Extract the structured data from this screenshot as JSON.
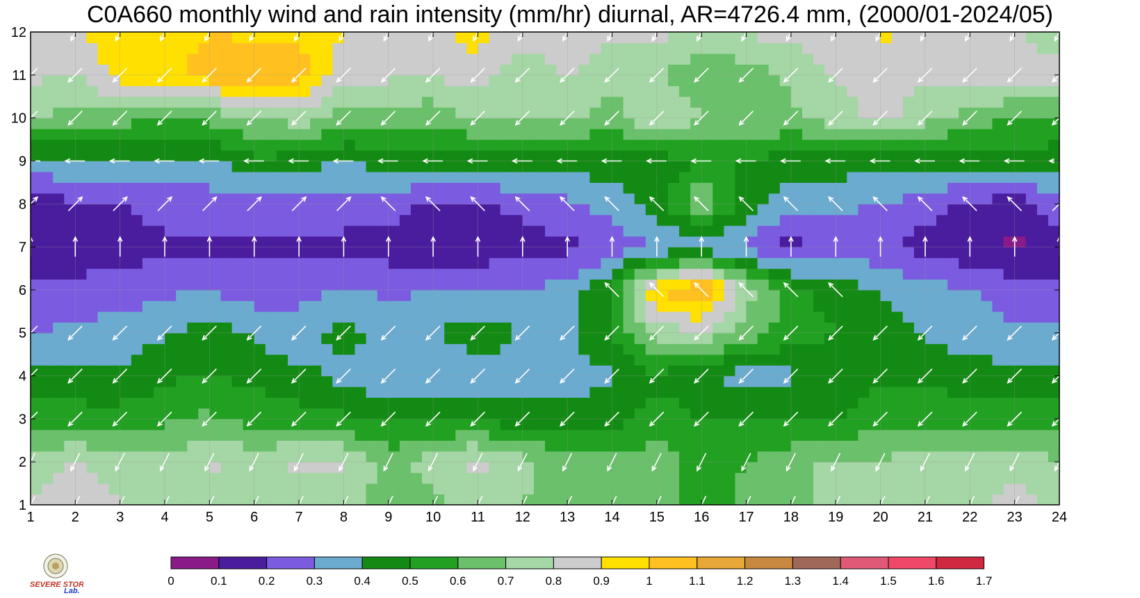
{
  "chart_data": {
    "type": "heatmap",
    "title": "C0A660 monthly wind and rain intensity (mm/hr) diurnal, AR=4726.4 mm, (2000/01-2024/05)",
    "xlabel": "",
    "ylabel": "",
    "xlim": [
      1,
      24
    ],
    "ylim": [
      1,
      12
    ],
    "x_ticks": [
      1,
      2,
      3,
      4,
      5,
      6,
      7,
      8,
      9,
      10,
      11,
      12,
      13,
      14,
      15,
      16,
      17,
      18,
      19,
      20,
      21,
      22,
      23,
      24
    ],
    "y_ticks": [
      1,
      2,
      3,
      4,
      5,
      6,
      7,
      8,
      9,
      10,
      11,
      12
    ],
    "x": [
      1,
      2,
      3,
      4,
      5,
      6,
      7,
      8,
      9,
      10,
      11,
      12,
      13,
      14,
      15,
      16,
      17,
      18,
      19,
      20,
      21,
      22,
      23,
      24
    ],
    "y": [
      1,
      2,
      3,
      4,
      5,
      6,
      7,
      8,
      9,
      10,
      11,
      12
    ],
    "z": [
      [
        0.81,
        0.85,
        0.8,
        0.75,
        0.73,
        0.75,
        0.73,
        0.73,
        0.65,
        0.68,
        0.72,
        0.7,
        0.65,
        0.65,
        0.65,
        0.55,
        0.62,
        0.68,
        0.72,
        0.75,
        0.75,
        0.78,
        0.85,
        0.75
      ],
      [
        0.75,
        0.8,
        0.75,
        0.72,
        0.82,
        0.75,
        0.83,
        0.82,
        0.65,
        0.75,
        0.85,
        0.72,
        0.65,
        0.65,
        0.65,
        0.55,
        0.6,
        0.68,
        0.72,
        0.72,
        0.72,
        0.75,
        0.75,
        0.7
      ],
      [
        0.58,
        0.55,
        0.55,
        0.58,
        0.62,
        0.55,
        0.55,
        0.52,
        0.48,
        0.48,
        0.48,
        0.45,
        0.45,
        0.44,
        0.55,
        0.5,
        0.5,
        0.48,
        0.5,
        0.55,
        0.58,
        0.55,
        0.55,
        0.58
      ],
      [
        0.42,
        0.42,
        0.41,
        0.48,
        0.5,
        0.48,
        0.43,
        0.36,
        0.3,
        0.34,
        0.35,
        0.35,
        0.35,
        0.39,
        0.48,
        0.42,
        0.35,
        0.38,
        0.45,
        0.48,
        0.48,
        0.45,
        0.42,
        0.42
      ],
      [
        0.3,
        0.32,
        0.35,
        0.38,
        0.45,
        0.38,
        0.33,
        0.45,
        0.35,
        0.4,
        0.45,
        0.4,
        0.38,
        0.5,
        0.75,
        0.78,
        0.65,
        0.55,
        0.5,
        0.45,
        0.38,
        0.35,
        0.32,
        0.32
      ],
      [
        0.22,
        0.22,
        0.25,
        0.28,
        0.3,
        0.25,
        0.28,
        0.3,
        0.28,
        0.3,
        0.32,
        0.3,
        0.35,
        0.5,
        1.0,
        1.15,
        0.75,
        0.55,
        0.45,
        0.4,
        0.35,
        0.3,
        0.25,
        0.22
      ],
      [
        0.15,
        0.15,
        0.15,
        0.17,
        0.17,
        0.17,
        0.17,
        0.17,
        0.15,
        0.12,
        0.12,
        0.16,
        0.18,
        0.22,
        0.3,
        0.32,
        0.28,
        0.15,
        0.25,
        0.22,
        0.15,
        0.12,
        0.08,
        0.15
      ],
      [
        0.15,
        0.18,
        0.18,
        0.25,
        0.25,
        0.25,
        0.25,
        0.25,
        0.25,
        0.18,
        0.2,
        0.22,
        0.28,
        0.35,
        0.45,
        0.7,
        0.45,
        0.35,
        0.32,
        0.3,
        0.25,
        0.18,
        0.15,
        0.25
      ],
      [
        0.35,
        0.4,
        0.38,
        0.38,
        0.38,
        0.48,
        0.45,
        0.4,
        0.45,
        0.45,
        0.45,
        0.45,
        0.45,
        0.45,
        0.45,
        0.5,
        0.5,
        0.45,
        0.45,
        0.45,
        0.42,
        0.45,
        0.45,
        0.45
      ],
      [
        0.72,
        0.65,
        0.65,
        0.6,
        0.62,
        0.7,
        0.75,
        0.65,
        0.65,
        0.62,
        0.72,
        0.72,
        0.72,
        0.65,
        0.82,
        0.7,
        0.68,
        0.68,
        0.75,
        0.85,
        0.75,
        0.65,
        0.6,
        0.58
      ],
      [
        0.82,
        0.8,
        0.95,
        0.95,
        1.05,
        1.1,
        1.05,
        0.85,
        0.82,
        0.82,
        0.85,
        0.72,
        0.82,
        0.75,
        0.7,
        0.6,
        0.65,
        0.72,
        0.82,
        0.8,
        0.82,
        0.82,
        0.85,
        0.85
      ],
      [
        0.85,
        0.9,
        0.95,
        0.95,
        1.0,
        0.98,
        0.98,
        0.9,
        0.82,
        0.85,
        0.95,
        0.85,
        0.82,
        0.82,
        0.82,
        0.8,
        0.82,
        0.82,
        0.85,
        0.92,
        0.9,
        0.85,
        0.8,
        0.75
      ]
    ],
    "wind": [
      [
        [
          -1,
          -2
        ],
        [
          -1,
          -2
        ],
        [
          -1,
          -2
        ],
        [
          -1,
          -2
        ],
        [
          -1,
          -2
        ],
        [
          -1,
          -2
        ],
        [
          -1,
          -2
        ],
        [
          -1,
          -2
        ],
        [
          -1,
          -2
        ],
        [
          -1,
          -2
        ],
        [
          -1,
          -2
        ],
        [
          -1,
          -2
        ],
        [
          -1,
          -2
        ],
        [
          -1,
          -2
        ],
        [
          -1,
          -2
        ],
        [
          -1,
          -2
        ],
        [
          -1,
          -2
        ],
        [
          -1,
          -2
        ],
        [
          -1,
          -2
        ],
        [
          -1,
          -2
        ],
        [
          -1,
          -2
        ],
        [
          -1,
          -2
        ],
        [
          -1,
          -2
        ],
        [
          -1,
          -2
        ]
      ],
      [
        [
          -1,
          -2
        ],
        [
          -1,
          -2
        ],
        [
          -1,
          -2
        ],
        [
          -1,
          -2
        ],
        [
          -1,
          -2
        ],
        [
          -1,
          -2
        ],
        [
          -1,
          -2
        ],
        [
          -1,
          -2
        ],
        [
          -1,
          -2
        ],
        [
          -1,
          -2
        ],
        [
          -1,
          -2
        ],
        [
          -1,
          -2
        ],
        [
          -1,
          -2
        ],
        [
          -1,
          -2
        ],
        [
          -1,
          -2
        ],
        [
          -1,
          -2
        ],
        [
          -1,
          -2
        ],
        [
          -1,
          -2
        ],
        [
          -1,
          -2
        ],
        [
          -1,
          -2
        ],
        [
          -1,
          -2
        ],
        [
          -1,
          -2
        ],
        [
          -1,
          -2
        ],
        [
          -1,
          -2
        ]
      ],
      [
        [
          -1,
          -1
        ],
        [
          -1,
          -1
        ],
        [
          -1,
          -1
        ],
        [
          -1,
          -1
        ],
        [
          -1,
          -1
        ],
        [
          -1,
          -1
        ],
        [
          -1,
          -1
        ],
        [
          -1,
          -1
        ],
        [
          -1,
          -1
        ],
        [
          -1,
          -1
        ],
        [
          -1,
          -1
        ],
        [
          -1,
          -1
        ],
        [
          -1,
          -1
        ],
        [
          -1,
          -1
        ],
        [
          -1,
          -1
        ],
        [
          -1,
          -1
        ],
        [
          -1,
          -1
        ],
        [
          -1,
          -1
        ],
        [
          -1,
          -1
        ],
        [
          -1,
          -1
        ],
        [
          -1,
          -1
        ],
        [
          -1,
          -1
        ],
        [
          -1,
          -1
        ],
        [
          -1,
          -1
        ]
      ],
      [
        [
          -1,
          -1
        ],
        [
          -1,
          -1
        ],
        [
          -1,
          -1
        ],
        [
          -1,
          -1
        ],
        [
          -1,
          -1
        ],
        [
          -1,
          -1
        ],
        [
          -1,
          -1
        ],
        [
          -1,
          -1
        ],
        [
          -1,
          -1
        ],
        [
          -1,
          -1
        ],
        [
          -1,
          -1
        ],
        [
          -1,
          -1
        ],
        [
          -1,
          -1
        ],
        [
          -1,
          -1
        ],
        [
          -1,
          -1
        ],
        [
          -1,
          -1
        ],
        [
          -1,
          -1
        ],
        [
          -1,
          -1
        ],
        [
          -1,
          -1
        ],
        [
          -1,
          -1
        ],
        [
          -1,
          -1
        ],
        [
          -1,
          -1
        ],
        [
          -1,
          -1
        ],
        [
          -1,
          -1
        ]
      ],
      [
        [
          -1,
          -1
        ],
        [
          -1,
          -1
        ],
        [
          -1,
          -1
        ],
        [
          -1,
          -1
        ],
        [
          -1,
          -1
        ],
        [
          -1,
          -1
        ],
        [
          -1,
          -1
        ],
        [
          -1,
          -1
        ],
        [
          -1,
          -1
        ],
        [
          -1,
          -1
        ],
        [
          -1,
          -1
        ],
        [
          -1,
          -1
        ],
        [
          -1,
          -1
        ],
        [
          -1,
          -1
        ],
        [
          -1,
          -1
        ],
        [
          -1,
          -1
        ],
        [
          -1,
          -1
        ],
        [
          -1,
          -1
        ],
        [
          -1,
          -1
        ],
        [
          -1,
          -1
        ],
        [
          -1,
          -1
        ],
        [
          -1,
          -1
        ],
        [
          -1,
          -1
        ],
        [
          -1,
          -1
        ]
      ],
      [
        [
          0,
          0
        ],
        [
          0,
          0
        ],
        [
          0,
          0
        ],
        [
          0,
          0
        ],
        [
          0,
          0
        ],
        [
          0,
          0
        ],
        [
          0,
          0
        ],
        [
          0,
          0
        ],
        [
          0,
          0
        ],
        [
          0,
          0
        ],
        [
          0,
          0
        ],
        [
          0,
          0
        ],
        [
          0,
          0
        ],
        [
          -1,
          1
        ],
        [
          -1,
          1
        ],
        [
          -1,
          1
        ],
        [
          -1,
          1
        ],
        [
          -1,
          1
        ],
        [
          -1,
          1
        ],
        [
          0,
          0
        ],
        [
          0,
          0
        ],
        [
          0,
          0
        ],
        [
          0,
          0
        ],
        [
          0,
          0
        ]
      ],
      [
        [
          0,
          1
        ],
        [
          0,
          1
        ],
        [
          0,
          1
        ],
        [
          0,
          1
        ],
        [
          0,
          1
        ],
        [
          0,
          1
        ],
        [
          0,
          1
        ],
        [
          0,
          1
        ],
        [
          0,
          1
        ],
        [
          0,
          1
        ],
        [
          0,
          1
        ],
        [
          0,
          1
        ],
        [
          0,
          1
        ],
        [
          0,
          1
        ],
        [
          0,
          1
        ],
        [
          0,
          1
        ],
        [
          0,
          1
        ],
        [
          0,
          1
        ],
        [
          0,
          1
        ],
        [
          0,
          1
        ],
        [
          0,
          1
        ],
        [
          0,
          1
        ],
        [
          0,
          1
        ],
        [
          0,
          1
        ]
      ],
      [
        [
          1,
          1
        ],
        [
          1,
          1
        ],
        [
          1,
          1
        ],
        [
          1,
          1
        ],
        [
          1,
          1
        ],
        [
          1,
          1
        ],
        [
          1,
          1
        ],
        [
          1,
          1
        ],
        [
          -1,
          1
        ],
        [
          -1,
          1
        ],
        [
          -1,
          1
        ],
        [
          -1,
          1
        ],
        [
          -1,
          1
        ],
        [
          -1,
          1
        ],
        [
          -1,
          1
        ],
        [
          -1,
          1
        ],
        [
          -1,
          1
        ],
        [
          -1,
          1
        ],
        [
          -1,
          1
        ],
        [
          -1,
          1
        ],
        [
          -1,
          1
        ],
        [
          -1,
          1
        ],
        [
          -1,
          1
        ],
        [
          1,
          1
        ]
      ],
      [
        [
          -1,
          0
        ],
        [
          -1,
          0
        ],
        [
          -1,
          0
        ],
        [
          -1,
          0
        ],
        [
          -1,
          0
        ],
        [
          -1,
          0
        ],
        [
          -1,
          0
        ],
        [
          -1,
          0
        ],
        [
          -1,
          0
        ],
        [
          -1,
          0
        ],
        [
          -1,
          0
        ],
        [
          -1,
          0
        ],
        [
          -1,
          0
        ],
        [
          -1,
          0
        ],
        [
          -1,
          0
        ],
        [
          -1,
          0
        ],
        [
          -1,
          0
        ],
        [
          -1,
          0
        ],
        [
          -1,
          0
        ],
        [
          -1,
          0
        ],
        [
          -1,
          0
        ],
        [
          -1,
          0
        ],
        [
          -1,
          0
        ],
        [
          -1,
          0
        ]
      ],
      [
        [
          -1,
          -1
        ],
        [
          -1,
          -1
        ],
        [
          -1,
          -1
        ],
        [
          -1,
          -1
        ],
        [
          -1,
          -1
        ],
        [
          -1,
          -1
        ],
        [
          -1,
          -1
        ],
        [
          -1,
          -1
        ],
        [
          -1,
          -1
        ],
        [
          -1,
          -1
        ],
        [
          -1,
          -1
        ],
        [
          -1,
          -1
        ],
        [
          -1,
          -1
        ],
        [
          -1,
          -1
        ],
        [
          -1,
          -1
        ],
        [
          -1,
          -1
        ],
        [
          -1,
          -1
        ],
        [
          -1,
          -1
        ],
        [
          -1,
          -1
        ],
        [
          -1,
          -1
        ],
        [
          -1,
          -1
        ],
        [
          -1,
          -1
        ],
        [
          -1,
          -1
        ],
        [
          -1,
          -1
        ]
      ],
      [
        [
          -1,
          -1
        ],
        [
          -1,
          -1
        ],
        [
          -1,
          -1
        ],
        [
          -1,
          -1
        ],
        [
          -1,
          -1
        ],
        [
          -1,
          -1
        ],
        [
          -1,
          -1
        ],
        [
          -1,
          -1
        ],
        [
          -1,
          -1
        ],
        [
          -1,
          -1
        ],
        [
          -1,
          -1
        ],
        [
          -1,
          -1
        ],
        [
          -1,
          -1
        ],
        [
          -1,
          -1
        ],
        [
          -1,
          -1
        ],
        [
          -1,
          -1
        ],
        [
          -1,
          -1
        ],
        [
          -1,
          -1
        ],
        [
          -1,
          -1
        ],
        [
          -1,
          -1
        ],
        [
          -1,
          -1
        ],
        [
          -1,
          -1
        ],
        [
          -1,
          -1
        ],
        [
          -1,
          -1
        ]
      ],
      [
        [
          -1,
          -2
        ],
        [
          -1,
          -2
        ],
        [
          -1,
          -2
        ],
        [
          -1,
          -2
        ],
        [
          -1,
          -2
        ],
        [
          -1,
          -2
        ],
        [
          -1,
          -2
        ],
        [
          -1,
          -2
        ],
        [
          -1,
          -2
        ],
        [
          -1,
          -2
        ],
        [
          -1,
          -2
        ],
        [
          -1,
          -2
        ],
        [
          -1,
          -2
        ],
        [
          -1,
          -2
        ],
        [
          -1,
          -2
        ],
        [
          -1,
          -2
        ],
        [
          -1,
          -2
        ],
        [
          -1,
          -2
        ],
        [
          -1,
          -2
        ],
        [
          -1,
          -2
        ],
        [
          -1,
          -2
        ],
        [
          -1,
          -2
        ],
        [
          -1,
          -2
        ],
        [
          -1,
          -2
        ]
      ]
    ],
    "colorbar": {
      "ticks": [
        "0",
        "0.1",
        "0.2",
        "0.3",
        "0.4",
        "0.5",
        "0.6",
        "0.7",
        "0.8",
        "0.9",
        "1",
        "1.1",
        "1.2",
        "1.3",
        "1.4",
        "1.5",
        "1.6",
        "1.7"
      ],
      "colors": [
        "#8B1A89",
        "#4A1C9E",
        "#7B5BE0",
        "#6BABD0",
        "#138A13",
        "#22A022",
        "#6BC06B",
        "#A5D6A5",
        "#CCCCCC",
        "#FFE000",
        "#FFC020",
        "#E8A838",
        "#C88840",
        "#A06858",
        "#E05A78",
        "#F04868",
        "#D02840"
      ]
    },
    "contour_line_color": "#F0A020",
    "wind_arrow_color": "#FFFFFF",
    "grid": true
  },
  "logo": {
    "text_word1": "SEVERE STORM",
    "text_word2": "Lab."
  }
}
